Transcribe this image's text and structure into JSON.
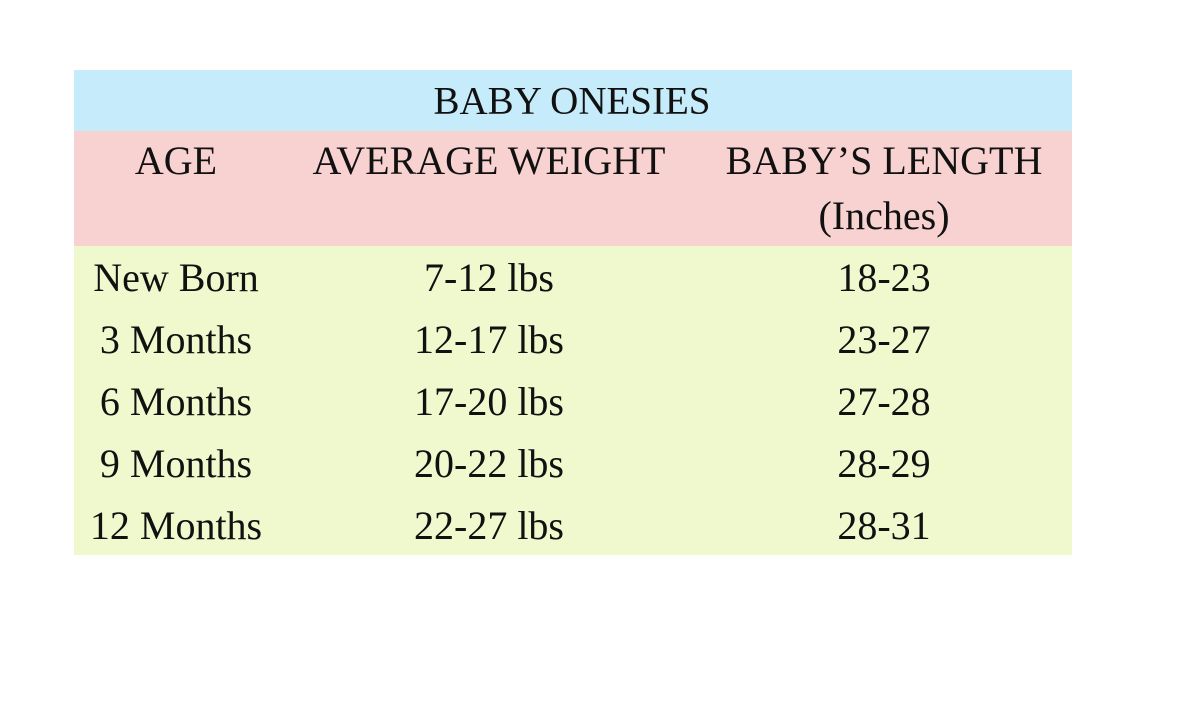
{
  "header": {
    "title": "BABY ONESIES"
  },
  "table": {
    "columns": [
      "AGE",
      "AVERAGE WEIGHT",
      "BABY’S LENGTH"
    ],
    "column_note": "(Inches)",
    "rows": [
      [
        "New Born",
        "7-12 lbs",
        "18-23"
      ],
      [
        "3 Months",
        "12-17 lbs",
        "23-27"
      ],
      [
        "6 Months",
        "17-20 lbs",
        "27-28"
      ],
      [
        "9 Months",
        "20-22 lbs",
        "28-29"
      ],
      [
        "12 Months",
        "22-27 lbs",
        "28-31"
      ]
    ]
  }
}
